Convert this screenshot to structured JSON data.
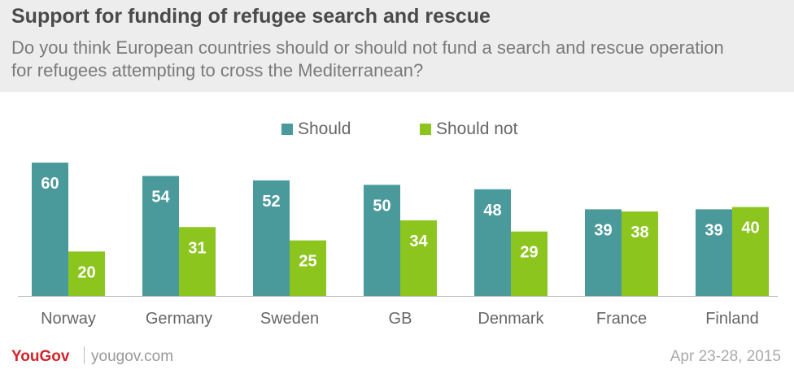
{
  "header": {
    "title": "Support for funding of refugee search and rescue",
    "subtitle": "Do you think European countries should or should not fund a search and rescue operation for refugees attempting to cross the Mediterranean?"
  },
  "legend": {
    "series_a": "Should",
    "series_b": "Should not"
  },
  "footer": {
    "logo": "YouGov",
    "site": "yougov.com",
    "date": "Apr 23-28, 2015"
  },
  "colors": {
    "should": "#4a9a9c",
    "should_not": "#8cc51e"
  },
  "chart_data": {
    "type": "bar",
    "title": "Support for funding of refugee search and rescue",
    "categories": [
      "Norway",
      "Germany",
      "Sweden",
      "GB",
      "Denmark",
      "France",
      "Finland"
    ],
    "series": [
      {
        "name": "Should",
        "values": [
          60,
          54,
          52,
          50,
          48,
          39,
          39
        ]
      },
      {
        "name": "Should not",
        "values": [
          20,
          31,
          25,
          34,
          29,
          38,
          40
        ]
      }
    ],
    "ylim": [
      0,
      60
    ],
    "legend": "top-center",
    "grid": false
  }
}
